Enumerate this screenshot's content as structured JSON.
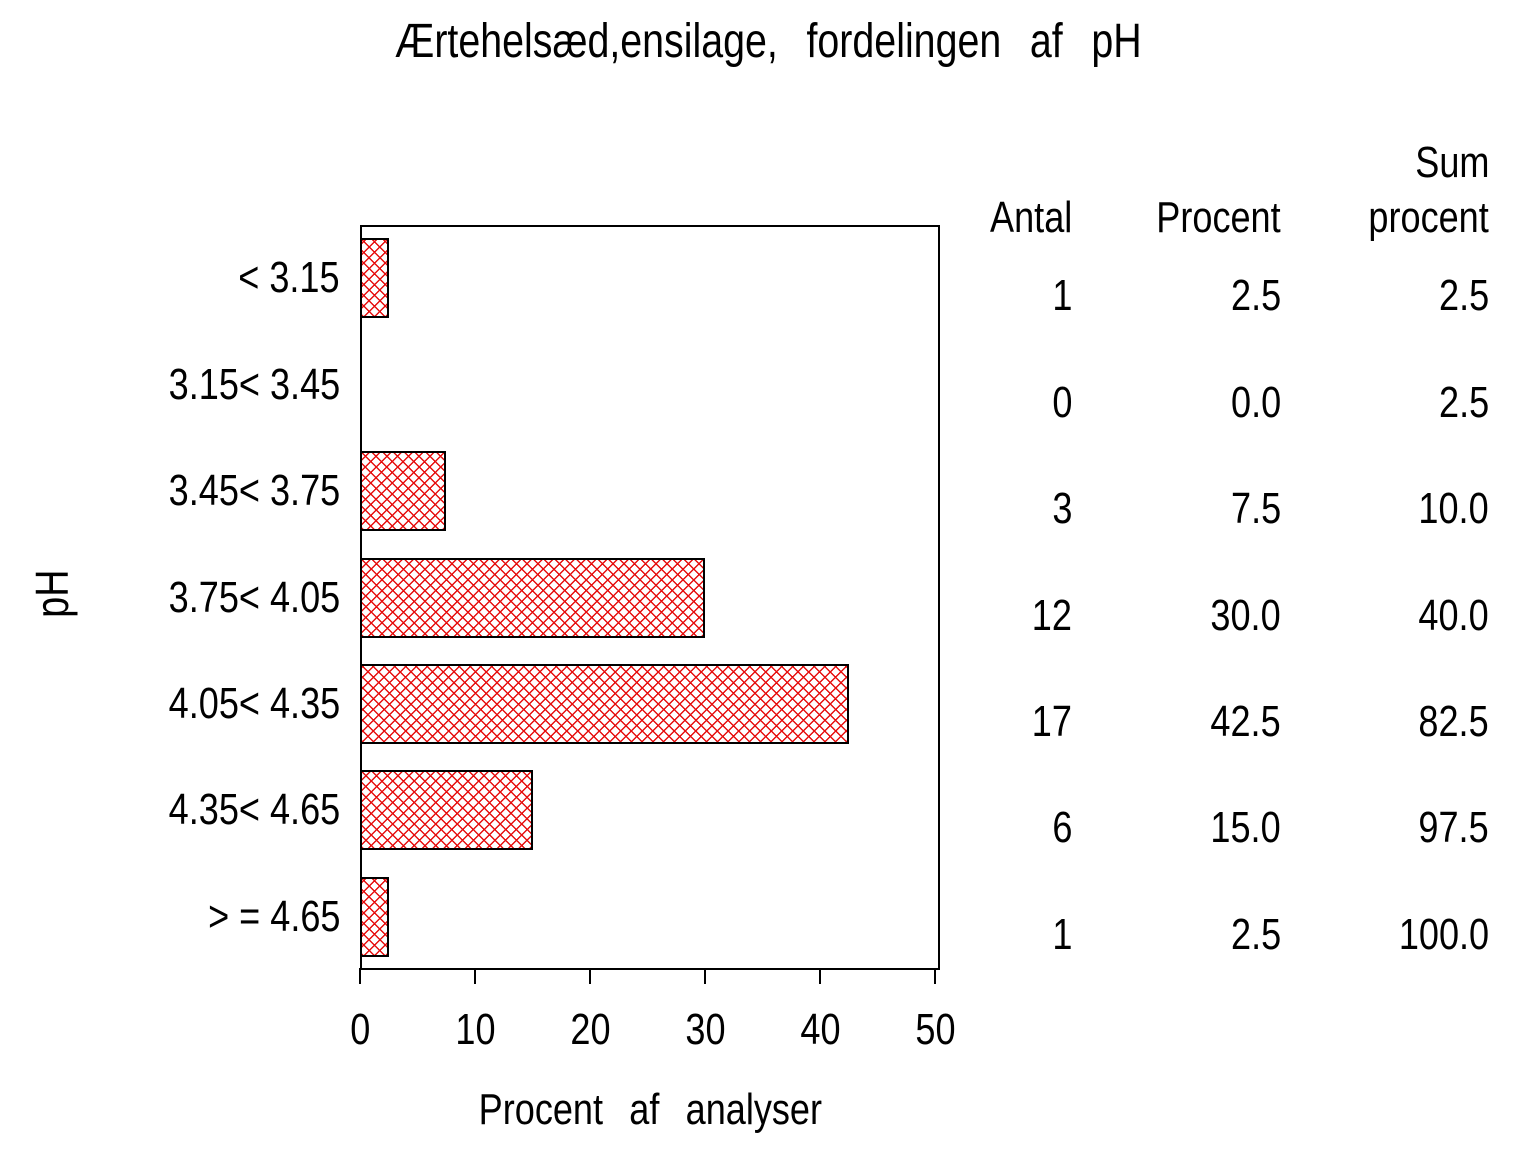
{
  "chart_data": {
    "type": "bar",
    "orientation": "horizontal",
    "title": "Ærtehelsæd,ensilage, fordelingen af pH",
    "xlabel": "Procent af analyser",
    "ylabel": "pH",
    "xlim": [
      0,
      50
    ],
    "xticks": [
      "0",
      "10",
      "20",
      "30",
      "40",
      "50"
    ],
    "grid": "off",
    "categories": [
      "< 3.15",
      "3.15< 3.45",
      "3.45< 3.75",
      "3.75< 4.05",
      "4.05< 4.35",
      "4.35< 4.65",
      "> = 4.65"
    ],
    "series": [
      {
        "name": "Procent af analyser",
        "values": [
          2.5,
          0.0,
          7.5,
          30.0,
          42.5,
          15.0,
          2.5
        ]
      }
    ],
    "table": {
      "headers": {
        "antal": "Antal",
        "procent": "Procent",
        "sum_top": "Sum",
        "sum_bottom": "procent"
      },
      "rows": [
        {
          "antal": "1",
          "procent": "2.5",
          "sum": "2.5"
        },
        {
          "antal": "0",
          "procent": "0.0",
          "sum": "2.5"
        },
        {
          "antal": "3",
          "procent": "7.5",
          "sum": "10.0"
        },
        {
          "antal": "12",
          "procent": "30.0",
          "sum": "40.0"
        },
        {
          "antal": "17",
          "procent": "42.5",
          "sum": "82.5"
        },
        {
          "antal": "6",
          "procent": "15.0",
          "sum": "97.5"
        },
        {
          "antal": "1",
          "procent": "2.5",
          "sum": "100.0"
        }
      ]
    },
    "style": {
      "hatch_color": "#e60f0f",
      "bar_border_color": "#000000",
      "frame_color": "#000000",
      "background": "#ffffff"
    }
  }
}
